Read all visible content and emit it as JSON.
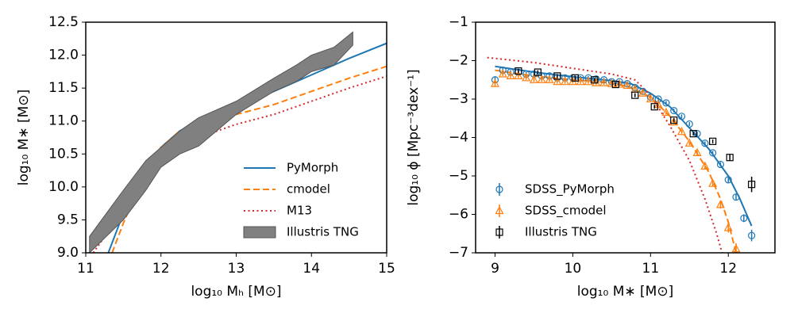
{
  "chart_data": [
    {
      "type": "line",
      "xlabel": "log₁₀ Mₕ [M⊙]",
      "ylabel": "log₁₀ M∗ [M⊙]",
      "xlim": [
        11,
        15
      ],
      "ylim": [
        9,
        12.5
      ],
      "xticks": [
        11,
        12,
        13,
        14,
        15
      ],
      "yticks": [
        {
          "value": 9,
          "label": "9.0"
        },
        9.5,
        {
          "value": 10,
          "label": "10.0"
        },
        10.5,
        {
          "value": 11,
          "label": "11.0"
        },
        11.5,
        {
          "value": 12,
          "label": "12.0"
        },
        12.5
      ],
      "legend": "lower right",
      "series": [
        {
          "name": "PyMorph",
          "color": "#1f77b4",
          "style": "solid",
          "x": [
            11.3,
            11.5,
            11.75,
            12.0,
            12.25,
            12.5,
            12.75,
            13.0,
            13.5,
            14.0,
            14.5,
            15.0
          ],
          "values": [
            9.0,
            9.6,
            10.2,
            10.6,
            10.85,
            11.0,
            11.1,
            11.22,
            11.45,
            11.7,
            11.95,
            12.18
          ]
        },
        {
          "name": "cmodel",
          "color": "#ff7f0e",
          "style": "dashed",
          "x": [
            11.35,
            11.5,
            11.75,
            12.0,
            12.25,
            12.5,
            13.0,
            13.5,
            14.0,
            14.5,
            15.0
          ],
          "values": [
            9.0,
            9.45,
            10.1,
            10.6,
            10.85,
            10.97,
            11.1,
            11.25,
            11.45,
            11.65,
            11.83
          ]
        },
        {
          "name": "M13",
          "color": "#d62728",
          "style": "dotted",
          "x": [
            11.1,
            11.5,
            11.75,
            12.0,
            12.25,
            12.5,
            13.0,
            13.5,
            14.0,
            14.5,
            15.0
          ],
          "values": [
            9.0,
            9.65,
            10.2,
            10.45,
            10.6,
            10.75,
            10.95,
            11.1,
            11.3,
            11.5,
            11.68
          ]
        },
        {
          "name": "Illustris TNG",
          "color": "#808080",
          "style": "band",
          "x": [
            11.05,
            11.5,
            11.8,
            12.0,
            12.25,
            12.5,
            13.0,
            13.5,
            13.8,
            14.0,
            14.3,
            14.55
          ],
          "values": [
            9.25,
            9.95,
            10.4,
            10.6,
            10.85,
            11.05,
            11.3,
            11.65,
            11.85,
            12.0,
            12.12,
            12.35
          ],
          "lower": [
            9.0,
            9.5,
            9.95,
            10.3,
            10.5,
            10.62,
            11.1,
            11.45,
            11.6,
            11.75,
            11.85,
            12.15
          ]
        }
      ]
    },
    {
      "type": "scatter",
      "xlabel": "log₁₀ M∗ [M⊙]",
      "ylabel": "log₁₀ ϕ [Mpc⁻³dex⁻¹]",
      "xlim": [
        8.75,
        12.6
      ],
      "ylim": [
        -7,
        -1
      ],
      "xticks": [
        9,
        10,
        11,
        12
      ],
      "yticks": [
        {
          "value": -7,
          "label": "−7"
        },
        {
          "value": -6,
          "label": "−6"
        },
        {
          "value": -5,
          "label": "−5"
        },
        {
          "value": -4,
          "label": "−4"
        },
        {
          "value": -3,
          "label": "−3"
        },
        {
          "value": -2,
          "label": "−2"
        },
        {
          "value": -1,
          "label": "−1"
        }
      ],
      "legend": "lower left",
      "lines": [
        {
          "color": "#1f77b4",
          "style": "solid",
          "x": [
            9.0,
            9.5,
            10.0,
            10.5,
            10.75,
            11.0,
            11.25,
            11.5,
            11.75,
            12.0,
            12.15,
            12.3
          ],
          "values": [
            -2.15,
            -2.3,
            -2.42,
            -2.52,
            -2.6,
            -2.85,
            -3.2,
            -3.75,
            -4.3,
            -5.0,
            -5.6,
            -6.3
          ]
        },
        {
          "color": "#ff7f0e",
          "style": "dashed",
          "x": [
            9.0,
            9.5,
            10.0,
            10.5,
            10.75,
            11.0,
            11.25,
            11.5,
            11.75,
            11.9,
            12.0,
            12.1
          ],
          "values": [
            -2.25,
            -2.4,
            -2.5,
            -2.58,
            -2.7,
            -2.95,
            -3.45,
            -4.1,
            -4.9,
            -5.6,
            -6.2,
            -7.0
          ]
        },
        {
          "color": "#d62728",
          "style": "dotted",
          "x": [
            8.9,
            9.5,
            10.0,
            10.5,
            10.8,
            11.0,
            11.25,
            11.5,
            11.7,
            11.85,
            11.92
          ],
          "values": [
            -1.92,
            -2.05,
            -2.2,
            -2.35,
            -2.5,
            -2.9,
            -3.7,
            -4.6,
            -5.6,
            -6.5,
            -7.0
          ]
        }
      ],
      "series": [
        {
          "name": "SDSS_PyMorph",
          "color": "#1f77b4",
          "marker": "circle",
          "x": [
            9.0,
            9.1,
            9.2,
            9.3,
            9.4,
            9.5,
            9.6,
            9.7,
            9.8,
            9.9,
            10.0,
            10.1,
            10.2,
            10.3,
            10.4,
            10.5,
            10.6,
            10.7,
            10.8,
            10.9,
            11.0,
            11.1,
            11.2,
            11.3,
            11.4,
            11.5,
            11.6,
            11.7,
            11.8,
            11.9,
            12.0,
            12.1,
            12.2,
            12.3
          ],
          "values": [
            -2.5,
            -2.25,
            -2.3,
            -2.3,
            -2.35,
            -2.35,
            -2.4,
            -2.4,
            -2.45,
            -2.45,
            -2.45,
            -2.45,
            -2.45,
            -2.48,
            -2.5,
            -2.55,
            -2.55,
            -2.6,
            -2.7,
            -2.8,
            -2.95,
            -3.0,
            -3.1,
            -3.3,
            -3.45,
            -3.65,
            -3.9,
            -4.15,
            -4.4,
            -4.7,
            -5.1,
            -5.55,
            -6.1,
            -6.55
          ],
          "errors": [
            0.08,
            0.05,
            0.05,
            0.05,
            0.05,
            0.05,
            0.05,
            0.05,
            0.05,
            0.05,
            0.05,
            0.05,
            0.05,
            0.05,
            0.05,
            0.05,
            0.05,
            0.05,
            0.05,
            0.05,
            0.05,
            0.05,
            0.05,
            0.05,
            0.05,
            0.05,
            0.05,
            0.05,
            0.05,
            0.06,
            0.07,
            0.08,
            0.1,
            0.15
          ]
        },
        {
          "name": "SDSS_cmodel",
          "color": "#ff7f0e",
          "marker": "triangle",
          "x": [
            9.0,
            9.1,
            9.2,
            9.3,
            9.4,
            9.5,
            9.6,
            9.7,
            9.8,
            9.9,
            10.0,
            10.1,
            10.2,
            10.3,
            10.4,
            10.5,
            10.6,
            10.7,
            10.8,
            10.9,
            11.0,
            11.1,
            11.2,
            11.3,
            11.4,
            11.5,
            11.6,
            11.7,
            11.8,
            11.9,
            12.0,
            12.1
          ],
          "values": [
            -2.6,
            -2.35,
            -2.4,
            -2.4,
            -2.45,
            -2.5,
            -2.5,
            -2.5,
            -2.55,
            -2.55,
            -2.55,
            -2.55,
            -2.55,
            -2.58,
            -2.58,
            -2.6,
            -2.62,
            -2.65,
            -2.75,
            -2.85,
            -3.0,
            -3.15,
            -3.35,
            -3.6,
            -3.85,
            -4.15,
            -4.4,
            -4.75,
            -5.2,
            -5.75,
            -6.35,
            -6.9
          ],
          "errors": [
            0.08,
            0.05,
            0.05,
            0.05,
            0.05,
            0.05,
            0.05,
            0.05,
            0.05,
            0.05,
            0.05,
            0.05,
            0.05,
            0.05,
            0.05,
            0.05,
            0.05,
            0.05,
            0.05,
            0.05,
            0.05,
            0.05,
            0.05,
            0.05,
            0.05,
            0.05,
            0.06,
            0.07,
            0.08,
            0.1,
            0.12,
            0.15
          ]
        },
        {
          "name": "Illustris TNG",
          "color": "#000000",
          "marker": "square",
          "x": [
            9.3,
            9.55,
            9.8,
            10.03,
            10.28,
            10.55,
            10.8,
            11.05,
            11.3,
            11.55,
            11.8,
            12.02,
            12.3
          ],
          "values": [
            -2.27,
            -2.3,
            -2.4,
            -2.45,
            -2.5,
            -2.62,
            -2.9,
            -3.2,
            -3.55,
            -3.9,
            -4.1,
            -4.52,
            -5.22
          ],
          "errors": [
            0.05,
            0.05,
            0.05,
            0.05,
            0.05,
            0.05,
            0.05,
            0.05,
            0.05,
            0.05,
            0.05,
            0.08,
            0.2
          ]
        }
      ]
    }
  ]
}
